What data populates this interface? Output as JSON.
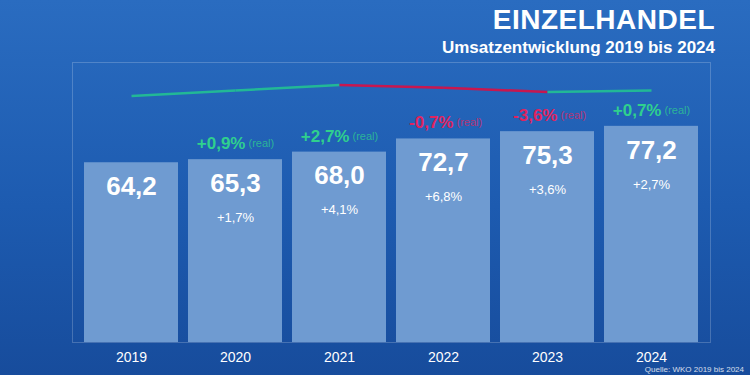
{
  "chart_data": {
    "type": "bar",
    "title": "EINZELHANDEL",
    "subtitle": "Umsatzentwicklung 2019 bis 2024",
    "source": "Quelle: WKO 2019 bis 2024",
    "categories": [
      "2019",
      "2020",
      "2021",
      "2022",
      "2023",
      "2024"
    ],
    "values": [
      64.2,
      65.3,
      68.0,
      72.7,
      75.3,
      77.2
    ],
    "value_labels": [
      "64,2",
      "65,3",
      "68,0",
      "72,7",
      "75,3",
      "77,2"
    ],
    "color": "#6f9bd1",
    "data_labels": true,
    "ylim": [
      0,
      100
    ],
    "grid": false,
    "tick_labels": "x",
    "nominal_growth": {
      "values": [
        null,
        1.7,
        4.1,
        6.8,
        3.6,
        2.7
      ],
      "labels": [
        null,
        "+1,7%",
        "+4,1%",
        "+6,8%",
        "+3,6%",
        "+2,7%"
      ]
    },
    "real_growth": {
      "values": [
        null,
        0.9,
        2.7,
        -0.7,
        -3.6,
        0.7
      ],
      "labels": [
        null,
        "+0,9%",
        "+2,7%",
        "-0,7%",
        "-3,6%",
        "+0,7%"
      ],
      "suffix": "(real)",
      "colors": [
        null,
        "#2fd08e",
        "#2fd08e",
        "#e0245e",
        "#e0245e",
        "#2fd08e"
      ]
    },
    "trend_line": {
      "type": "line",
      "values": [
        88,
        90,
        92,
        91,
        89.5,
        90
      ],
      "colors": [
        null,
        "#22b896",
        "#22b896",
        "#c8174f",
        "#c8174f",
        "#22b896"
      ]
    }
  }
}
